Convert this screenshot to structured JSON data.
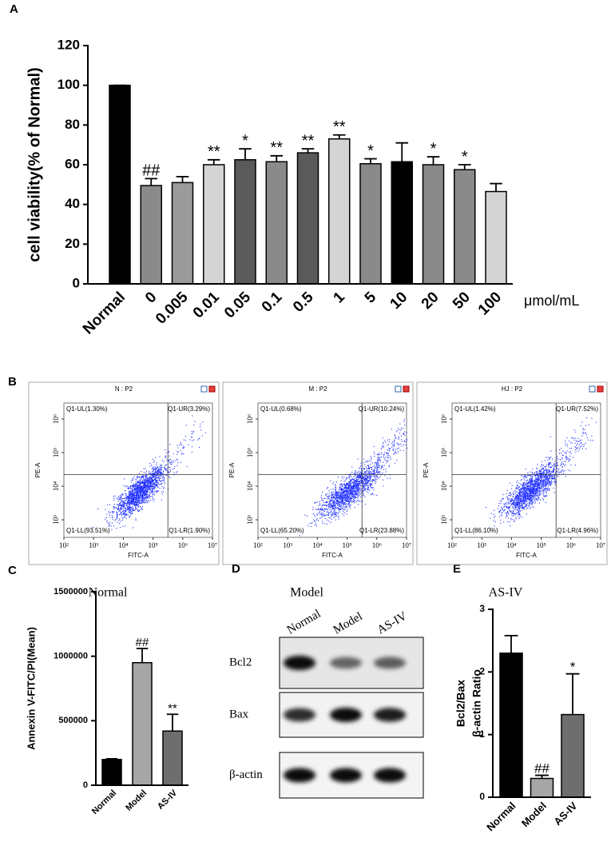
{
  "chart_data": [
    {
      "panel": "A",
      "type": "bar",
      "ylabel": "cell viability(% of Normal)",
      "xunit": "μmol/mL",
      "categories": [
        "Normal",
        "0",
        "0.005",
        "0.01",
        "0.05",
        "0.1",
        "0.5",
        "1",
        "5",
        "10",
        "20",
        "50",
        "100"
      ],
      "values": [
        100,
        49.5,
        51,
        60,
        62.5,
        61.5,
        66,
        73,
        60.5,
        61.5,
        60,
        57.5,
        46.5
      ],
      "errors": [
        0,
        3.5,
        3,
        2.5,
        5.5,
        3,
        2,
        2,
        2.5,
        9.5,
        4,
        2.5,
        4
      ],
      "annotations": [
        null,
        "##",
        null,
        "**",
        "*",
        "**",
        "**",
        "**",
        "*",
        null,
        "*",
        "*",
        null
      ],
      "colors": [
        "#000000",
        "#8a8a8a",
        "#9b9b9b",
        "#d4d4d4",
        "#5a5a5a",
        "#8a8a8a",
        "#5a5a5a",
        "#d4d4d4",
        "#8a8a8a",
        "#000000",
        "#8a8a8a",
        "#8a8a8a",
        "#d4d4d4"
      ],
      "ylim": [
        0,
        120
      ],
      "yticks": [
        0,
        20,
        40,
        60,
        80,
        100,
        120
      ]
    },
    {
      "panel": "C",
      "type": "bar",
      "ylabel": "Annexin V-FITC/PI(Mean)",
      "categories": [
        "Normal",
        "Model",
        "AS-IV"
      ],
      "values": [
        200000,
        950000,
        420000
      ],
      "errors": [
        5000,
        110000,
        130000
      ],
      "annotations": [
        null,
        "##",
        "**"
      ],
      "colors": [
        "#000000",
        "#a6a6a6",
        "#6e6e6e"
      ],
      "ylim": [
        0,
        1500000
      ],
      "yticks": [
        0,
        500000,
        1000000,
        1500000
      ]
    },
    {
      "panel": "E",
      "type": "bar",
      "ylabel": [
        "Bcl2/Bax",
        "β-actin Ratio"
      ],
      "categories": [
        "Normal",
        "Model",
        "AS-IV"
      ],
      "values": [
        2.3,
        0.3,
        1.32
      ],
      "errors": [
        0.28,
        0.05,
        0.65
      ],
      "annotations": [
        null,
        "##",
        "*"
      ],
      "colors": [
        "#000000",
        "#a6a6a6",
        "#6e6e6e"
      ],
      "ylim": [
        0,
        3
      ],
      "yticks": [
        0,
        1,
        2,
        3
      ]
    }
  ],
  "flow_cytometry": {
    "panel": "B",
    "xlabel": "FITC-A",
    "ylabel": "PE-A",
    "xscale": "log",
    "yscale": "log",
    "xlim": [
      100,
      10000000
    ],
    "ylim": [
      300,
      3000000
    ],
    "xticks": [
      {
        "value": 100,
        "label": "10²"
      },
      {
        "value": 1000,
        "label": "10³"
      },
      {
        "value": 10000,
        "label": "10⁴"
      },
      {
        "value": 100000,
        "label": "10⁵"
      },
      {
        "value": 1000000,
        "label": "10⁶"
      },
      {
        "value": 10000000,
        "label": "10⁷"
      }
    ],
    "yticks": [
      {
        "value": 1000,
        "label": "10³"
      },
      {
        "value": 10000,
        "label": "10⁴"
      },
      {
        "value": 100000,
        "label": "10⁵"
      },
      {
        "value": 1000000,
        "label": "10⁶"
      }
    ],
    "plots": [
      {
        "title": "N : P2",
        "caption": "Normal",
        "quadrants": {
          "UL": "Q1-UL(1.30%)",
          "UR": "Q1-UR(3.29%)",
          "LL": "Q1-LL(93.51%)",
          "LR": "Q1-LR(1.90%)"
        }
      },
      {
        "title": "M : P2",
        "caption": "Model",
        "quadrants": {
          "UL": "Q1-UL(0.68%)",
          "UR": "Q1-UR(10.24%)",
          "LL": "Q1-LL(65.20%)",
          "LR": "Q1-LR(23.88%)"
        }
      },
      {
        "title": "HJ : P2",
        "caption": "AS-IV",
        "quadrants": {
          "UL": "Q1-UL(1.42%)",
          "UR": "Q1-UR(7.52%)",
          "LL": "Q1-LL(86.10%)",
          "LR": "Q1-LR(4.96%)"
        }
      }
    ]
  },
  "western_blot": {
    "panel": "D",
    "lanes": [
      "Normal",
      "Model",
      "AS-IV"
    ],
    "rows": [
      "Bcl2",
      "Bax",
      "β-actin"
    ]
  }
}
